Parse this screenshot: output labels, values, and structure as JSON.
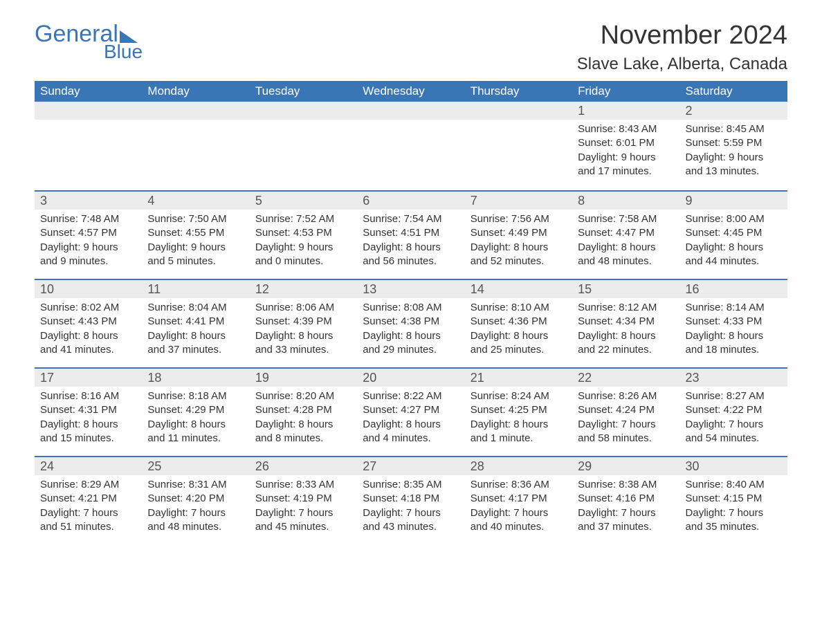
{
  "logo": {
    "general": "General",
    "blue": "Blue"
  },
  "title": "November 2024",
  "location": "Slave Lake, Alberta, Canada",
  "weekdays": [
    "Sunday",
    "Monday",
    "Tuesday",
    "Wednesday",
    "Thursday",
    "Friday",
    "Saturday"
  ],
  "colors": {
    "header_bg": "#3a75b5",
    "header_text": "#ffffff",
    "daynum_bg": "#ececec",
    "row_border": "#3a75b5",
    "body_text": "#333333",
    "logo_color": "#3a75b5"
  },
  "fonts": {
    "month_title_size": 38,
    "location_size": 24,
    "weekday_size": 17,
    "daynum_size": 18,
    "body_size": 15
  },
  "weeks": [
    [
      {
        "day": "",
        "sunrise": "",
        "sunset": "",
        "daylight": ""
      },
      {
        "day": "",
        "sunrise": "",
        "sunset": "",
        "daylight": ""
      },
      {
        "day": "",
        "sunrise": "",
        "sunset": "",
        "daylight": ""
      },
      {
        "day": "",
        "sunrise": "",
        "sunset": "",
        "daylight": ""
      },
      {
        "day": "",
        "sunrise": "",
        "sunset": "",
        "daylight": ""
      },
      {
        "day": "1",
        "sunrise": "Sunrise: 8:43 AM",
        "sunset": "Sunset: 6:01 PM",
        "daylight": "Daylight: 9 hours and 17 minutes."
      },
      {
        "day": "2",
        "sunrise": "Sunrise: 8:45 AM",
        "sunset": "Sunset: 5:59 PM",
        "daylight": "Daylight: 9 hours and 13 minutes."
      }
    ],
    [
      {
        "day": "3",
        "sunrise": "Sunrise: 7:48 AM",
        "sunset": "Sunset: 4:57 PM",
        "daylight": "Daylight: 9 hours and 9 minutes."
      },
      {
        "day": "4",
        "sunrise": "Sunrise: 7:50 AM",
        "sunset": "Sunset: 4:55 PM",
        "daylight": "Daylight: 9 hours and 5 minutes."
      },
      {
        "day": "5",
        "sunrise": "Sunrise: 7:52 AM",
        "sunset": "Sunset: 4:53 PM",
        "daylight": "Daylight: 9 hours and 0 minutes."
      },
      {
        "day": "6",
        "sunrise": "Sunrise: 7:54 AM",
        "sunset": "Sunset: 4:51 PM",
        "daylight": "Daylight: 8 hours and 56 minutes."
      },
      {
        "day": "7",
        "sunrise": "Sunrise: 7:56 AM",
        "sunset": "Sunset: 4:49 PM",
        "daylight": "Daylight: 8 hours and 52 minutes."
      },
      {
        "day": "8",
        "sunrise": "Sunrise: 7:58 AM",
        "sunset": "Sunset: 4:47 PM",
        "daylight": "Daylight: 8 hours and 48 minutes."
      },
      {
        "day": "9",
        "sunrise": "Sunrise: 8:00 AM",
        "sunset": "Sunset: 4:45 PM",
        "daylight": "Daylight: 8 hours and 44 minutes."
      }
    ],
    [
      {
        "day": "10",
        "sunrise": "Sunrise: 8:02 AM",
        "sunset": "Sunset: 4:43 PM",
        "daylight": "Daylight: 8 hours and 41 minutes."
      },
      {
        "day": "11",
        "sunrise": "Sunrise: 8:04 AM",
        "sunset": "Sunset: 4:41 PM",
        "daylight": "Daylight: 8 hours and 37 minutes."
      },
      {
        "day": "12",
        "sunrise": "Sunrise: 8:06 AM",
        "sunset": "Sunset: 4:39 PM",
        "daylight": "Daylight: 8 hours and 33 minutes."
      },
      {
        "day": "13",
        "sunrise": "Sunrise: 8:08 AM",
        "sunset": "Sunset: 4:38 PM",
        "daylight": "Daylight: 8 hours and 29 minutes."
      },
      {
        "day": "14",
        "sunrise": "Sunrise: 8:10 AM",
        "sunset": "Sunset: 4:36 PM",
        "daylight": "Daylight: 8 hours and 25 minutes."
      },
      {
        "day": "15",
        "sunrise": "Sunrise: 8:12 AM",
        "sunset": "Sunset: 4:34 PM",
        "daylight": "Daylight: 8 hours and 22 minutes."
      },
      {
        "day": "16",
        "sunrise": "Sunrise: 8:14 AM",
        "sunset": "Sunset: 4:33 PM",
        "daylight": "Daylight: 8 hours and 18 minutes."
      }
    ],
    [
      {
        "day": "17",
        "sunrise": "Sunrise: 8:16 AM",
        "sunset": "Sunset: 4:31 PM",
        "daylight": "Daylight: 8 hours and 15 minutes."
      },
      {
        "day": "18",
        "sunrise": "Sunrise: 8:18 AM",
        "sunset": "Sunset: 4:29 PM",
        "daylight": "Daylight: 8 hours and 11 minutes."
      },
      {
        "day": "19",
        "sunrise": "Sunrise: 8:20 AM",
        "sunset": "Sunset: 4:28 PM",
        "daylight": "Daylight: 8 hours and 8 minutes."
      },
      {
        "day": "20",
        "sunrise": "Sunrise: 8:22 AM",
        "sunset": "Sunset: 4:27 PM",
        "daylight": "Daylight: 8 hours and 4 minutes."
      },
      {
        "day": "21",
        "sunrise": "Sunrise: 8:24 AM",
        "sunset": "Sunset: 4:25 PM",
        "daylight": "Daylight: 8 hours and 1 minute."
      },
      {
        "day": "22",
        "sunrise": "Sunrise: 8:26 AM",
        "sunset": "Sunset: 4:24 PM",
        "daylight": "Daylight: 7 hours and 58 minutes."
      },
      {
        "day": "23",
        "sunrise": "Sunrise: 8:27 AM",
        "sunset": "Sunset: 4:22 PM",
        "daylight": "Daylight: 7 hours and 54 minutes."
      }
    ],
    [
      {
        "day": "24",
        "sunrise": "Sunrise: 8:29 AM",
        "sunset": "Sunset: 4:21 PM",
        "daylight": "Daylight: 7 hours and 51 minutes."
      },
      {
        "day": "25",
        "sunrise": "Sunrise: 8:31 AM",
        "sunset": "Sunset: 4:20 PM",
        "daylight": "Daylight: 7 hours and 48 minutes."
      },
      {
        "day": "26",
        "sunrise": "Sunrise: 8:33 AM",
        "sunset": "Sunset: 4:19 PM",
        "daylight": "Daylight: 7 hours and 45 minutes."
      },
      {
        "day": "27",
        "sunrise": "Sunrise: 8:35 AM",
        "sunset": "Sunset: 4:18 PM",
        "daylight": "Daylight: 7 hours and 43 minutes."
      },
      {
        "day": "28",
        "sunrise": "Sunrise: 8:36 AM",
        "sunset": "Sunset: 4:17 PM",
        "daylight": "Daylight: 7 hours and 40 minutes."
      },
      {
        "day": "29",
        "sunrise": "Sunrise: 8:38 AM",
        "sunset": "Sunset: 4:16 PM",
        "daylight": "Daylight: 7 hours and 37 minutes."
      },
      {
        "day": "30",
        "sunrise": "Sunrise: 8:40 AM",
        "sunset": "Sunset: 4:15 PM",
        "daylight": "Daylight: 7 hours and 35 minutes."
      }
    ]
  ]
}
